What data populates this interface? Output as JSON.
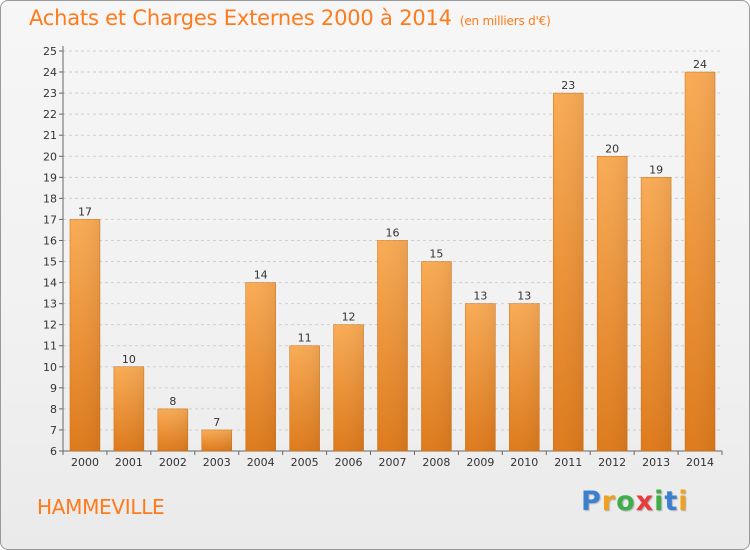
{
  "header": {
    "title": "Achats et Charges Externes 2000 à 2014",
    "unit": "(en milliers d'€)"
  },
  "commune": "HAMMEVILLE",
  "logo_text": "Proxiti",
  "colors": {
    "bar_light": "#f7a650",
    "bar_dark": "#e07f20",
    "title": "#ff7a1a",
    "grid": "#cfcfcf"
  },
  "chart_data": {
    "type": "bar",
    "title": "Achats et Charges Externes 2000 à 2014",
    "subtitle": "(en milliers d'€)",
    "xlabel": "",
    "ylabel": "",
    "categories": [
      "2000",
      "2001",
      "2002",
      "2003",
      "2004",
      "2005",
      "2006",
      "2007",
      "2008",
      "2009",
      "2010",
      "2011",
      "2012",
      "2013",
      "2014"
    ],
    "values": [
      17,
      10,
      8,
      7,
      14,
      11,
      12,
      16,
      15,
      13,
      13,
      23,
      20,
      19,
      24
    ],
    "ylim": [
      6,
      25
    ],
    "yticks": [
      6,
      7,
      8,
      9,
      10,
      11,
      12,
      13,
      14,
      15,
      16,
      17,
      18,
      19,
      20,
      21,
      22,
      23,
      24,
      25
    ],
    "grid": "horizontal dashed",
    "legend": "none"
  }
}
